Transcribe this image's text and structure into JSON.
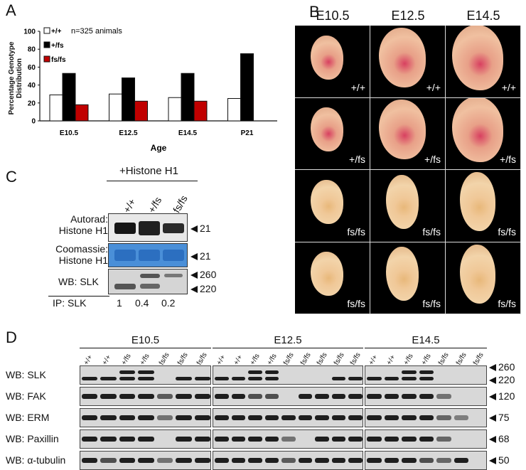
{
  "panels": {
    "A": "A",
    "B": "B",
    "C": "C",
    "D": "D"
  },
  "panelA": {
    "ylabel_line1": "Percentage Genotype",
    "ylabel_line2": "Distribution",
    "xlabel": "Age",
    "note": "n=325 animals",
    "yticks": [
      "0",
      "20",
      "40",
      "60",
      "80",
      "100"
    ],
    "legend": [
      {
        "name": "+/+",
        "color": "#ffffff"
      },
      {
        "name": "+/fs",
        "color": "#000000"
      },
      {
        "name": "fs/fs",
        "color": "#c00000"
      }
    ],
    "chart_data": {
      "type": "bar",
      "categories": [
        "E10.5",
        "E12.5",
        "E14.5",
        "P21"
      ],
      "series": [
        {
          "name": "+/+",
          "values": [
            29,
            30,
            26,
            25
          ]
        },
        {
          "name": "+/fs",
          "values": [
            53,
            48,
            53,
            75
          ]
        },
        {
          "name": "fs/fs",
          "values": [
            18,
            22,
            22,
            0
          ]
        }
      ],
      "ylim": [
        0,
        100
      ],
      "xlabel": "Age",
      "ylabel": "Percentage Genotype Distribution",
      "legend": "top-left"
    }
  },
  "panelB": {
    "stages": [
      "E10.5",
      "E12.5",
      "E14.5"
    ],
    "rows": [
      [
        "+/+",
        "+/+",
        "+/+"
      ],
      [
        "+/fs",
        "+/fs",
        "+/fs"
      ],
      [
        "fs/fs",
        "fs/fs",
        "fs/fs"
      ],
      [
        "fs/fs",
        "fs/fs",
        "fs/fs"
      ]
    ]
  },
  "panelC": {
    "header": "+Histone H1",
    "lanes": [
      "+/+",
      "+/fs",
      "fs/fs"
    ],
    "autorad_l1": "Autorad:",
    "autorad_l2": "Histone H1",
    "coom_l1": "Coomassie:",
    "coom_l2": "Histone H1",
    "wb": "WB: SLK",
    "ip": "IP: SLK",
    "ip_values": [
      "1",
      "0.4",
      "0.2"
    ],
    "mw_autorad": "21",
    "mw_coom": "21",
    "mw_wb": [
      "260",
      "220"
    ]
  },
  "panelD": {
    "stages": [
      "E10.5",
      "E12.5",
      "E14.5"
    ],
    "genotypes": [
      [
        "+/+",
        "+/+",
        "+/fs",
        "+/fs",
        "fs/fs",
        "fs/fs",
        "fs/fs"
      ],
      [
        "+/+",
        "+/+",
        "+/fs",
        "+/fs",
        "fs/fs",
        "fs/fs",
        "fs/fs",
        "fs/fs",
        "fs/fs"
      ],
      [
        "+/+",
        "+/+",
        "+/fs",
        "+/fs",
        "fs/fs",
        "fs/fs",
        "fs/fs"
      ]
    ],
    "blots": [
      {
        "label": "WB: SLK",
        "mw": [
          "260",
          "220"
        ]
      },
      {
        "label": "WB: FAK",
        "mw": [
          "120"
        ]
      },
      {
        "label": "WB: ERM",
        "mw": [
          "75"
        ]
      },
      {
        "label": "WB: Paxillin",
        "mw": [
          "68"
        ]
      },
      {
        "label": "WB: α-tubulin",
        "mw": [
          "50"
        ]
      }
    ]
  }
}
